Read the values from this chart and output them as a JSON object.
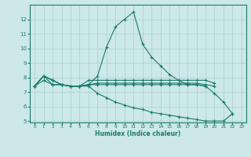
{
  "xlabel": "Humidex (Indice chaleur)",
  "xlim": [
    -0.5,
    23.5
  ],
  "ylim": [
    4.9,
    13.0
  ],
  "yticks": [
    5,
    6,
    7,
    8,
    9,
    10,
    11,
    12
  ],
  "xticks": [
    0,
    1,
    2,
    3,
    4,
    5,
    6,
    7,
    8,
    9,
    10,
    11,
    12,
    13,
    14,
    15,
    16,
    17,
    18,
    19,
    20,
    21,
    22,
    23
  ],
  "bg_color": "#cce8e8",
  "grid_color": "#aacece",
  "line_color": "#1a7a6e",
  "lines": [
    {
      "x": [
        0,
        1,
        2,
        3,
        4,
        5,
        6,
        7,
        8,
        9,
        10,
        11,
        12,
        13,
        14,
        15,
        16,
        17,
        18,
        19,
        20,
        21,
        22
      ],
      "y": [
        7.4,
        8.1,
        7.8,
        7.5,
        7.4,
        7.4,
        7.5,
        8.1,
        10.1,
        11.5,
        12.0,
        12.5,
        10.3,
        9.4,
        8.8,
        8.2,
        7.8,
        7.5,
        7.5,
        7.4,
        6.9,
        6.3,
        5.5
      ]
    },
    {
      "x": [
        0,
        1,
        2,
        3,
        4,
        5,
        6,
        7,
        8,
        9,
        10,
        11,
        12,
        13,
        14,
        15,
        16,
        17,
        18,
        19,
        20
      ],
      "y": [
        7.4,
        8.1,
        7.8,
        7.5,
        7.4,
        7.4,
        7.8,
        7.8,
        7.8,
        7.8,
        7.8,
        7.8,
        7.8,
        7.8,
        7.8,
        7.8,
        7.8,
        7.8,
        7.8,
        7.8,
        7.6
      ]
    },
    {
      "x": [
        0,
        1,
        2,
        3,
        4,
        5,
        6,
        7,
        8,
        9,
        10,
        11,
        12,
        13,
        14,
        15,
        16,
        17,
        18,
        19,
        20
      ],
      "y": [
        7.4,
        8.1,
        7.8,
        7.5,
        7.4,
        7.4,
        7.5,
        7.6,
        7.6,
        7.6,
        7.6,
        7.6,
        7.6,
        7.6,
        7.6,
        7.6,
        7.6,
        7.6,
        7.6,
        7.5,
        7.4
      ]
    },
    {
      "x": [
        0,
        1,
        2,
        3,
        4,
        5,
        6,
        7,
        8,
        9,
        10,
        11,
        12,
        13,
        14,
        15,
        16,
        17,
        18,
        19
      ],
      "y": [
        7.4,
        8.1,
        7.5,
        7.5,
        7.4,
        7.4,
        7.5,
        7.5,
        7.5,
        7.5,
        7.5,
        7.5,
        7.5,
        7.5,
        7.5,
        7.5,
        7.5,
        7.5,
        7.5,
        7.4
      ]
    },
    {
      "x": [
        0,
        1,
        2,
        3,
        4,
        5,
        6,
        7,
        8,
        9,
        10,
        11,
        12,
        13,
        14,
        15,
        16,
        17,
        18,
        19,
        20,
        21,
        22
      ],
      "y": [
        7.4,
        7.8,
        7.5,
        7.5,
        7.4,
        7.4,
        7.4,
        6.9,
        6.6,
        6.3,
        6.1,
        5.9,
        5.8,
        5.6,
        5.5,
        5.4,
        5.3,
        5.2,
        5.1,
        5.0,
        5.0,
        5.0,
        5.5
      ]
    }
  ]
}
